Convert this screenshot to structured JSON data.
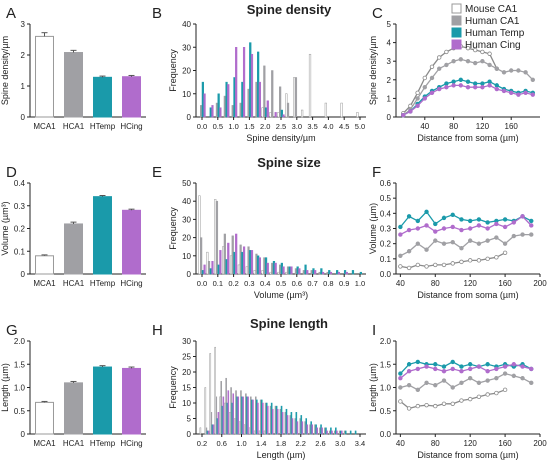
{
  "row_titles": [
    "Spine density",
    "Spine size",
    "Spine length"
  ],
  "legend": {
    "position": "top-right",
    "entries": [
      {
        "label": "Mouse CA1",
        "color": "#ffffff",
        "stroke": "#999999"
      },
      {
        "label": "Human CA1",
        "color": "#a0a0a4",
        "stroke": "#a0a0a4"
      },
      {
        "label": "Human Temp",
        "color": "#1a9aaa",
        "stroke": "#1a9aaa"
      },
      {
        "label": "Human Cing",
        "color": "#b06ccc",
        "stroke": "#b06ccc"
      }
    ]
  },
  "chart_data": [
    {
      "panel": "A",
      "type": "bar",
      "categories": [
        "MCA1",
        "HCA1",
        "HTemp",
        "HCing"
      ],
      "values": [
        2.6,
        2.08,
        1.28,
        1.3
      ],
      "errors": [
        0.12,
        0.07,
        0.04,
        0.04
      ],
      "ylabel": "Spine density/µm",
      "ylim": [
        0,
        3
      ],
      "yticks": [
        "0",
        "1",
        "2",
        "3"
      ]
    },
    {
      "panel": "B",
      "type": "bar",
      "xlabel": "Spine density/µm",
      "ylabel": "Frequency",
      "ylim": [
        0,
        40
      ],
      "yticks": [
        "0",
        "10",
        "20",
        "30",
        "40"
      ],
      "xticks": [
        "0.0",
        "0.5",
        "1.0",
        "1.5",
        "2.0",
        "2.5",
        "3.0",
        "3.5",
        "4.0",
        "4.5",
        "5.0"
      ],
      "bin_centers": [
        0.0,
        0.25,
        0.5,
        0.75,
        1.0,
        1.25,
        1.5,
        1.75,
        2.0,
        2.25,
        2.5,
        2.75,
        3.0,
        3.25,
        3.5,
        3.75,
        4.0,
        4.25,
        4.5,
        4.75,
        5.0
      ],
      "series": [
        {
          "name": "Mouse CA1",
          "values": [
            0,
            0,
            0,
            0,
            0,
            0,
            0,
            0,
            4,
            2,
            2,
            10,
            17,
            3,
            27,
            0,
            6,
            0,
            6,
            0,
            2
          ]
        },
        {
          "name": "Human CA1",
          "values": [
            5,
            0,
            6,
            9,
            5,
            6,
            12,
            15,
            22,
            20,
            13,
            6,
            17,
            0,
            0,
            0,
            0,
            0,
            0,
            0,
            0
          ]
        },
        {
          "name": "Human Temp",
          "values": [
            15,
            4,
            10,
            15,
            17,
            15,
            32,
            28,
            4,
            0,
            3,
            0,
            0,
            0,
            0,
            0,
            0,
            0,
            0,
            0,
            0
          ]
        },
        {
          "name": "Human Cing",
          "values": [
            10,
            5,
            4,
            14,
            30,
            30,
            27,
            15,
            7,
            2,
            1,
            0,
            0,
            0,
            0,
            0,
            0,
            0,
            0,
            0,
            0
          ]
        }
      ]
    },
    {
      "panel": "C",
      "type": "line",
      "xlabel": "Distance from soma (µm)",
      "ylabel": "Spine density/µm",
      "ylim": [
        0,
        5
      ],
      "yticks": [
        "0",
        "1",
        "2",
        "3",
        "4",
        "5"
      ],
      "xlim": [
        0,
        200
      ],
      "xticks": [
        "40",
        "80",
        "120",
        "160"
      ],
      "x": [
        10,
        20,
        30,
        40,
        50,
        60,
        70,
        80,
        90,
        100,
        110,
        120,
        130,
        140,
        150,
        160,
        170,
        180,
        190
      ],
      "series": [
        {
          "name": "Mouse CA1",
          "values": [
            0.2,
            0.6,
            1.3,
            2.1,
            2.7,
            3.2,
            3.5,
            3.7,
            3.8,
            3.7,
            3.6,
            3.5,
            3.4,
            2.6,
            null,
            null,
            null,
            null,
            null
          ]
        },
        {
          "name": "Human CA1",
          "values": [
            0.1,
            0.4,
            1.0,
            1.6,
            2.1,
            2.6,
            2.8,
            3.0,
            3.1,
            3.0,
            2.9,
            3.0,
            2.8,
            2.6,
            2.4,
            2.5,
            2.5,
            2.4,
            2.0
          ]
        },
        {
          "name": "Human Temp",
          "values": [
            0.1,
            0.3,
            0.7,
            1.1,
            1.4,
            1.6,
            1.8,
            1.9,
            2.0,
            1.9,
            1.8,
            1.8,
            1.9,
            1.7,
            1.5,
            1.4,
            1.3,
            1.4,
            1.3
          ]
        },
        {
          "name": "Human Cing",
          "values": [
            0.1,
            0.3,
            0.6,
            1.0,
            1.3,
            1.5,
            1.6,
            1.7,
            1.7,
            1.6,
            1.6,
            1.6,
            1.7,
            1.5,
            1.4,
            1.3,
            1.2,
            1.3,
            1.2
          ]
        }
      ]
    },
    {
      "panel": "D",
      "type": "bar",
      "categories": [
        "MCA1",
        "HCA1",
        "HTemp",
        "HCing"
      ],
      "values": [
        0.08,
        0.22,
        0.34,
        0.28
      ],
      "errors": [
        0.004,
        0.008,
        0.005,
        0.005
      ],
      "ylabel": "Volume (µm³)",
      "ylim": [
        0,
        0.4
      ],
      "yticks": [
        "0",
        "0.1",
        "0.2",
        "0.3",
        "0.4"
      ]
    },
    {
      "panel": "E",
      "type": "bar",
      "xlabel": "Volume (µm³)",
      "ylabel": "Frequency",
      "ylim": [
        0,
        50
      ],
      "yticks": [
        "0",
        "10",
        "20",
        "30",
        "40",
        "50"
      ],
      "xticks": [
        "0.0",
        "0.1",
        "0.2",
        "0.3",
        "0.4",
        "0.5",
        "0.6",
        "0.7",
        "0.8",
        "0.9",
        "1.0"
      ],
      "bin_centers": [
        0.0,
        0.05,
        0.1,
        0.15,
        0.2,
        0.25,
        0.3,
        0.35,
        0.4,
        0.45,
        0.5,
        0.55,
        0.6,
        0.65,
        0.7,
        0.75,
        0.8,
        0.85,
        0.9,
        0.95,
        1.0
      ],
      "series": [
        {
          "name": "Mouse CA1",
          "values": [
            43,
            12,
            41,
            15,
            10,
            5,
            4,
            2,
            2,
            1,
            1,
            1,
            0,
            0,
            0,
            0,
            0,
            0,
            0,
            0,
            0
          ]
        },
        {
          "name": "Human CA1",
          "values": [
            20,
            7,
            40,
            22,
            21,
            16,
            15,
            11,
            9,
            6,
            5,
            4,
            3,
            2,
            2,
            1,
            1,
            0,
            0,
            0,
            0
          ]
        },
        {
          "name": "Human Temp",
          "values": [
            2,
            3,
            5,
            8,
            12,
            12,
            13,
            10,
            9,
            7,
            6,
            4,
            4,
            5,
            3,
            3,
            2,
            2,
            2,
            2,
            1
          ]
        },
        {
          "name": "Human Cing",
          "values": [
            5,
            7,
            13,
            17,
            22,
            15,
            13,
            9,
            6,
            6,
            4,
            4,
            3,
            2,
            2,
            1,
            1,
            1,
            1,
            0,
            0
          ]
        }
      ]
    },
    {
      "panel": "F",
      "type": "line",
      "xlabel": "Distance from soma (µm)",
      "ylabel": "Volume (µm)",
      "ylim": [
        0,
        0.6
      ],
      "yticks": [
        "0.0",
        "0.1",
        "0.2",
        "0.3",
        "0.4",
        "0.5",
        "0.6"
      ],
      "xlim": [
        35,
        200
      ],
      "xticks": [
        "40",
        "80",
        "120",
        "160",
        "200"
      ],
      "x": [
        40,
        50,
        60,
        70,
        80,
        90,
        100,
        110,
        120,
        130,
        140,
        150,
        160,
        170,
        180,
        190
      ],
      "series": [
        {
          "name": "Mouse CA1",
          "values": [
            0.05,
            0.04,
            0.06,
            0.05,
            0.06,
            0.06,
            0.07,
            0.08,
            0.09,
            0.09,
            0.1,
            0.11,
            0.14,
            null,
            null,
            null
          ]
        },
        {
          "name": "Human CA1",
          "values": [
            0.12,
            0.15,
            0.2,
            0.16,
            0.22,
            0.2,
            0.21,
            0.17,
            0.22,
            0.2,
            0.22,
            0.24,
            0.2,
            0.25,
            0.26,
            0.26
          ]
        },
        {
          "name": "Human Temp",
          "values": [
            0.31,
            0.38,
            0.35,
            0.41,
            0.33,
            0.37,
            0.39,
            0.36,
            0.35,
            0.36,
            0.34,
            0.35,
            0.36,
            0.35,
            0.38,
            0.35
          ]
        },
        {
          "name": "Human Cing",
          "values": [
            0.26,
            0.29,
            0.3,
            0.32,
            0.28,
            0.3,
            0.31,
            0.29,
            0.3,
            0.32,
            0.3,
            0.33,
            0.31,
            0.34,
            0.38,
            0.32
          ]
        }
      ]
    },
    {
      "panel": "G",
      "type": "bar",
      "categories": [
        "MCA1",
        "HCA1",
        "HTemp",
        "HCing"
      ],
      "values": [
        0.68,
        1.1,
        1.44,
        1.41
      ],
      "errors": [
        0.02,
        0.03,
        0.03,
        0.03
      ],
      "ylabel": "Length (µm)",
      "ylim": [
        0,
        2.0
      ],
      "yticks": [
        "0",
        "0.5",
        "1.0",
        "1.5",
        "2.0"
      ]
    },
    {
      "panel": "H",
      "type": "bar",
      "xlabel": "Length (µm)",
      "ylabel": "Frequency",
      "ylim": [
        0,
        30
      ],
      "yticks": [
        "0",
        "5",
        "10",
        "15",
        "20",
        "25",
        "30"
      ],
      "xticks": [
        "0.2",
        "0.6",
        "1.0",
        "1.4",
        "1.8",
        "2.2",
        "2.6",
        "3.0",
        "3.4"
      ],
      "bin_centers": [
        0.2,
        0.3,
        0.4,
        0.5,
        0.6,
        0.7,
        0.8,
        0.9,
        1.0,
        1.1,
        1.2,
        1.3,
        1.4,
        1.5,
        1.6,
        1.7,
        1.8,
        1.9,
        2.0,
        2.1,
        2.2,
        2.3,
        2.4,
        2.5,
        2.6,
        2.7,
        2.8,
        2.9,
        3.0,
        3.1,
        3.2,
        3.3,
        3.4
      ],
      "series": [
        {
          "name": "Mouse CA1",
          "values": [
            2,
            15,
            26,
            28,
            12,
            10,
            7,
            5,
            4,
            3,
            2,
            1,
            1,
            1,
            0,
            0,
            0,
            0,
            0,
            0,
            0,
            0,
            0,
            0,
            0,
            0,
            0,
            0,
            0,
            0,
            0,
            0,
            0
          ]
        },
        {
          "name": "Human CA1",
          "values": [
            0,
            2,
            7,
            12,
            17,
            18,
            15,
            14,
            14,
            13,
            12,
            12,
            11,
            10,
            9,
            9,
            8,
            7,
            6,
            5,
            5,
            4,
            3,
            3,
            2,
            2,
            1,
            1,
            1,
            1,
            0,
            0,
            0
          ]
        },
        {
          "name": "Human Temp",
          "values": [
            0,
            1,
            3,
            5,
            9,
            10,
            10,
            12,
            12,
            12,
            11,
            11,
            11,
            10,
            10,
            9,
            9,
            8,
            7,
            7,
            6,
            5,
            4,
            3,
            3,
            2,
            2,
            2,
            1,
            1,
            1,
            1,
            0
          ]
        },
        {
          "name": "Human Cing",
          "values": [
            0,
            1,
            3,
            7,
            12,
            14,
            13,
            12,
            12,
            12,
            11,
            10,
            10,
            9,
            8,
            8,
            7,
            6,
            5,
            4,
            4,
            3,
            3,
            2,
            2,
            1,
            1,
            1,
            1,
            0,
            0,
            0,
            0
          ]
        }
      ]
    },
    {
      "panel": "I",
      "type": "line",
      "xlabel": "Distance from soma (µm)",
      "ylabel": "Length (µm)",
      "ylim": [
        0,
        2.0
      ],
      "yticks": [
        "0.0",
        "0.5",
        "1.0",
        "1.5",
        "2.0"
      ],
      "xlim": [
        35,
        200
      ],
      "xticks": [
        "40",
        "80",
        "120",
        "160",
        "200"
      ],
      "x": [
        40,
        50,
        60,
        70,
        80,
        90,
        100,
        110,
        120,
        130,
        140,
        150,
        160,
        170,
        180,
        190
      ],
      "series": [
        {
          "name": "Mouse CA1",
          "values": [
            0.7,
            0.55,
            0.6,
            0.62,
            0.6,
            0.65,
            0.65,
            0.72,
            0.75,
            0.8,
            0.85,
            0.88,
            0.95,
            null,
            null,
            null
          ]
        },
        {
          "name": "Human CA1",
          "values": [
            1.0,
            1.05,
            0.95,
            1.1,
            1.05,
            1.15,
            1.0,
            1.1,
            1.2,
            1.1,
            1.15,
            1.2,
            1.3,
            1.25,
            1.2,
            1.1
          ]
        },
        {
          "name": "Human Temp",
          "values": [
            1.3,
            1.5,
            1.55,
            1.5,
            1.5,
            1.45,
            1.55,
            1.45,
            1.5,
            1.45,
            1.5,
            1.45,
            1.5,
            1.45,
            1.5,
            1.4
          ]
        },
        {
          "name": "Human Cing",
          "values": [
            1.2,
            1.35,
            1.4,
            1.45,
            1.4,
            1.35,
            1.4,
            1.35,
            1.4,
            1.45,
            1.35,
            1.4,
            1.45,
            1.5,
            1.45,
            1.4
          ]
        }
      ]
    }
  ]
}
